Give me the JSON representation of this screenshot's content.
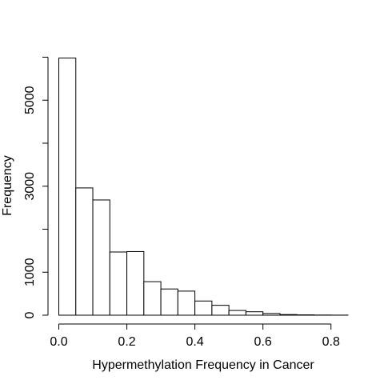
{
  "chart_data": {
    "type": "bar",
    "title": "",
    "xlabel": "Hypermethylation Frequency in Cancer",
    "ylabel": "Frequency",
    "bin_edges": [
      0.0,
      0.05,
      0.1,
      0.15,
      0.2,
      0.25,
      0.3,
      0.35,
      0.4,
      0.45,
      0.5,
      0.55,
      0.6,
      0.65,
      0.7,
      0.75,
      0.8,
      0.85
    ],
    "values": [
      5980,
      2960,
      2680,
      1470,
      1480,
      780,
      610,
      560,
      330,
      230,
      110,
      80,
      40,
      15,
      8,
      4,
      2
    ],
    "xlim": [
      0.0,
      0.85
    ],
    "ylim": [
      0,
      6000
    ],
    "x_ticks": [
      0.0,
      0.2,
      0.4,
      0.6,
      0.8
    ],
    "x_tick_labels": [
      "0.0",
      "0.2",
      "0.4",
      "0.6",
      "0.8"
    ],
    "y_ticks": [
      0,
      1000,
      2000,
      3000,
      4000,
      5000,
      6000
    ],
    "y_tick_labels": [
      "0",
      "1000",
      "",
      "3000",
      "",
      "5000",
      ""
    ],
    "grid": false,
    "legend": "none",
    "bar_fill": "#ffffff",
    "bar_stroke": "#000000"
  }
}
